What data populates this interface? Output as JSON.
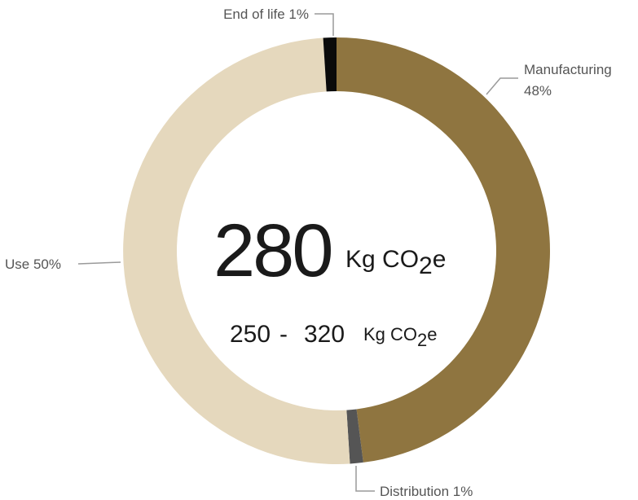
{
  "chart_data": {
    "type": "pie",
    "donut": true,
    "slices": [
      {
        "label": "Manufacturing",
        "label_line2": "48%",
        "value": 48,
        "color": "#8f7540"
      },
      {
        "label": "Distribution 1%",
        "value": 1,
        "color": "#555555"
      },
      {
        "label": "Use 50%",
        "value": 50,
        "color": "#e5d8bd"
      },
      {
        "label": "End of life 1%",
        "value": 1,
        "color": "#0a0a0a"
      }
    ],
    "center": {
      "value": "280",
      "unit_prefix": "Kg CO",
      "unit_sub": "2",
      "unit_suffix": "e",
      "range_low": "250",
      "range_sep": "-",
      "range_high": "320",
      "range_unit_prefix": "Kg CO",
      "range_unit_sub": "2",
      "range_unit_suffix": "e"
    }
  }
}
